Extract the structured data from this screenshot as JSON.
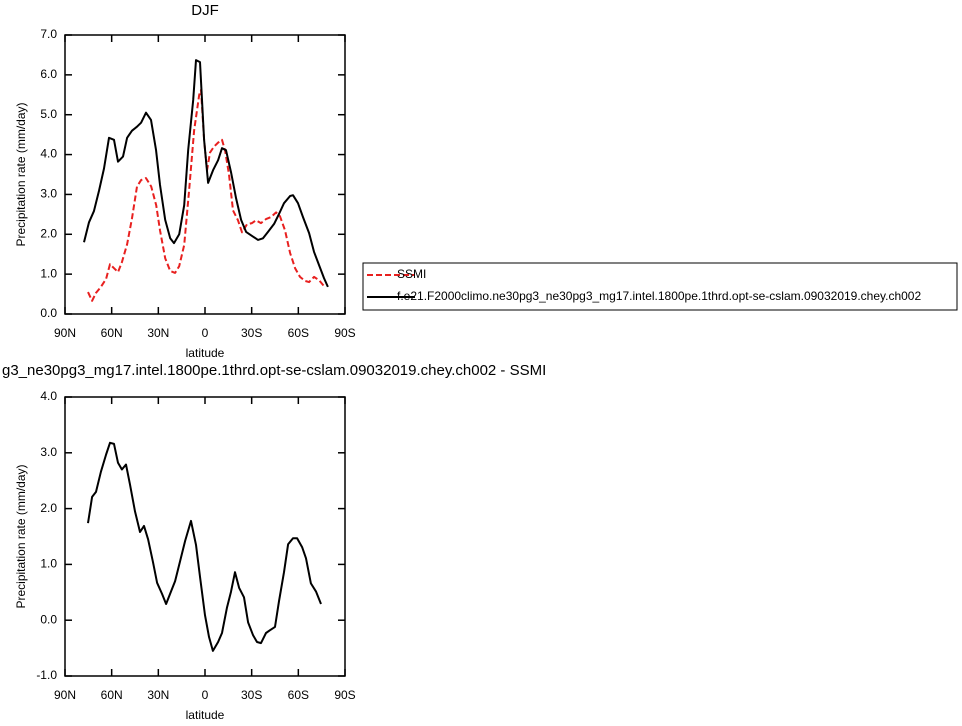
{
  "chart_data": [
    {
      "type": "line",
      "title": "DJF",
      "xlabel": "latitude",
      "ylabel": "Precipitation rate (mm/day)",
      "xlim": [
        90,
        -90
      ],
      "xticks": [
        {
          "value": 90,
          "label": "90N"
        },
        {
          "value": 60,
          "label": "60N"
        },
        {
          "value": 30,
          "label": "30N"
        },
        0,
        {
          "value": -30,
          "label": "30S"
        },
        {
          "value": -60,
          "label": "60S"
        },
        {
          "value": -90,
          "label": "90S"
        }
      ],
      "ylim": [
        0,
        7
      ],
      "yticks": [
        {
          "value": 0,
          "label": "0.0"
        },
        {
          "value": 1,
          "label": "1.0"
        },
        {
          "value": 2,
          "label": "2.0"
        },
        {
          "value": 3,
          "label": "3.0"
        },
        {
          "value": 4,
          "label": "4.0"
        },
        {
          "value": 5,
          "label": "5.0"
        },
        {
          "value": 6,
          "label": "6.0"
        },
        {
          "value": 7,
          "label": "7.0"
        }
      ],
      "legend": "right",
      "series": [
        {
          "name": "SSMI",
          "color": "#e8201f",
          "dash": true,
          "x": [
            75.2,
            72.6,
            70.1,
            66.9,
            63.6,
            61.1,
            58.5,
            55.9,
            53.4,
            50.1,
            46.9,
            43.7,
            41.1,
            37.9,
            34.6,
            31.4,
            28.9,
            25.6,
            22.4,
            19.2,
            16.6,
            13.4,
            10.2,
            7.0,
            3.7,
            2.6,
            0.6,
            -1.3,
            -3.2,
            -5.8,
            -8.4,
            -10.9,
            -12.9,
            -15.4,
            -18.0,
            -21.2,
            -23.8,
            -27.0,
            -30.2,
            -32.8,
            -36.0,
            -39.2,
            -42.4,
            -45.7,
            -48.2,
            -51.4,
            -54.7,
            -57.9,
            -61.1,
            -64.3,
            -66.9,
            -70.1,
            -73.3,
            -76.5
          ],
          "values": [
            0.55,
            0.33,
            0.53,
            0.68,
            0.88,
            1.25,
            1.15,
            1.05,
            1.3,
            1.75,
            2.4,
            3.2,
            3.36,
            3.41,
            3.2,
            2.73,
            2.1,
            1.4,
            1.08,
            1.03,
            1.2,
            1.73,
            3.1,
            4.6,
            5.5,
            5.62,
            4.37,
            3.6,
            4.05,
            4.2,
            4.3,
            4.37,
            4.1,
            3.5,
            2.6,
            2.35,
            2.05,
            2.25,
            2.28,
            2.35,
            2.28,
            2.38,
            2.43,
            2.55,
            2.45,
            2.1,
            1.53,
            1.15,
            0.93,
            0.83,
            0.8,
            0.93,
            0.85,
            0.7
          ]
        },
        {
          "name": "f.e21.F2000climo.ne30pg3_ne30pg3_mg17.intel.1800pe.1thrd.opt-se-cslam.09032019.chey.ch002",
          "color": "#000000",
          "dash": false,
          "x": [
            77.8,
            74.6,
            71.4,
            68.1,
            64.9,
            61.7,
            58.5,
            55.9,
            52.7,
            50.1,
            46.9,
            43.7,
            41.1,
            37.9,
            34.7,
            31.5,
            28.9,
            25.6,
            22.4,
            19.9,
            16.6,
            13.4,
            10.8,
            7.6,
            5.8,
            3.2,
            0.6,
            -2.0,
            -5.2,
            -8.4,
            -10.9,
            -13.5,
            -16.7,
            -20.0,
            -23.2,
            -26.4,
            -30.2,
            -34.1,
            -37.3,
            -40.5,
            -44.4,
            -47.6,
            -50.8,
            -54.7,
            -56.6,
            -59.8,
            -63.0,
            -66.9,
            -70.1,
            -73.3,
            -76.5,
            -79.0
          ],
          "values": [
            1.8,
            2.3,
            2.58,
            3.1,
            3.65,
            4.42,
            4.37,
            3.82,
            3.95,
            4.42,
            4.6,
            4.7,
            4.8,
            5.05,
            4.87,
            4.12,
            3.24,
            2.36,
            1.9,
            1.78,
            2.0,
            2.73,
            4.12,
            5.37,
            6.37,
            6.32,
            4.37,
            3.29,
            3.61,
            3.86,
            4.16,
            4.11,
            3.56,
            2.9,
            2.36,
            2.06,
            1.96,
            1.86,
            1.9,
            2.06,
            2.26,
            2.51,
            2.78,
            2.96,
            2.98,
            2.78,
            2.43,
            2.03,
            1.56,
            1.23,
            0.9,
            0.68
          ]
        }
      ]
    },
    {
      "type": "line",
      "title": "g3_ne30pg3_mg17.intel.1800pe.1thrd.opt-se-cslam.09032019.chey.ch002 - SSMI",
      "xlabel": "latitude",
      "ylabel": "Precipitation rate (mm/day)",
      "xlim": [
        90,
        -90
      ],
      "xticks": [
        {
          "value": 90,
          "label": "90N"
        },
        {
          "value": 60,
          "label": "60N"
        },
        {
          "value": 30,
          "label": "30N"
        },
        0,
        {
          "value": -30,
          "label": "30S"
        },
        {
          "value": -60,
          "label": "60S"
        },
        {
          "value": -90,
          "label": "90S"
        }
      ],
      "ylim": [
        -1,
        4
      ],
      "yticks": [
        {
          "value": -1,
          "label": "-1.0"
        },
        {
          "value": 0,
          "label": "0.0"
        },
        {
          "value": 1,
          "label": "1.0"
        },
        {
          "value": 2,
          "label": "2.0"
        },
        {
          "value": 3,
          "label": "3.0"
        },
        {
          "value": 4,
          "label": "4.0"
        }
      ],
      "series": [
        {
          "color": "#000000",
          "dash": false,
          "x": [
            75.2,
            72.6,
            70.1,
            66.9,
            63.6,
            61.1,
            58.5,
            55.9,
            53.4,
            50.8,
            48.2,
            45.0,
            41.8,
            39.2,
            36.6,
            33.4,
            30.8,
            27.6,
            25.0,
            21.8,
            19.2,
            16.0,
            12.8,
            9.0,
            5.8,
            3.2,
            0.0,
            -2.6,
            -5.1,
            -8.4,
            -10.9,
            -14.1,
            -16.7,
            -19.3,
            -21.9,
            -25.1,
            -27.7,
            -30.9,
            -33.4,
            -36.0,
            -39.2,
            -41.8,
            -45.0,
            -47.6,
            -50.8,
            -53.4,
            -56.6,
            -59.2,
            -62.4,
            -64.9,
            -68.1,
            -71.4,
            -74.6
          ],
          "values": [
            1.74,
            2.21,
            2.3,
            2.66,
            2.97,
            3.18,
            3.16,
            2.82,
            2.7,
            2.79,
            2.43,
            1.95,
            1.58,
            1.69,
            1.45,
            1.04,
            0.67,
            0.47,
            0.29,
            0.52,
            0.7,
            1.06,
            1.42,
            1.78,
            1.35,
            0.78,
            0.09,
            -0.3,
            -0.55,
            -0.39,
            -0.23,
            0.22,
            0.51,
            0.86,
            0.58,
            0.41,
            -0.04,
            -0.27,
            -0.39,
            -0.41,
            -0.23,
            -0.18,
            -0.12,
            0.34,
            0.86,
            1.36,
            1.47,
            1.47,
            1.31,
            1.11,
            0.66,
            0.51,
            0.29
          ]
        }
      ]
    }
  ]
}
